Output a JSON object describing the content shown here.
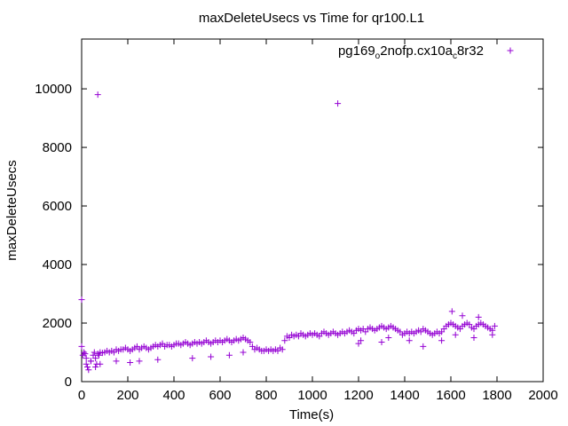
{
  "chart_data": {
    "type": "scatter",
    "title": "maxDeleteUsecs vs Time for qr100.L1",
    "xlabel": "Time(s)",
    "ylabel": "maxDeleteUsecs",
    "xlim": [
      0,
      2000
    ],
    "ylim": [
      0,
      11700
    ],
    "xticks": [
      0,
      200,
      400,
      600,
      800,
      1000,
      1200,
      1400,
      1600,
      1800,
      2000
    ],
    "yticks": [
      0,
      2000,
      4000,
      6000,
      8000,
      10000
    ],
    "grid": false,
    "legend_position": "top-right",
    "marker": "+",
    "series": [
      {
        "name_parts": [
          "pg169",
          "o",
          "2nofp.cx10a",
          "c",
          "8r32"
        ],
        "color": "#9400d3",
        "x": [
          0,
          5,
          10,
          15,
          20,
          25,
          30,
          40,
          50,
          55,
          60,
          65,
          70,
          75,
          80,
          90,
          100,
          110,
          120,
          130,
          140,
          150,
          160,
          170,
          180,
          190,
          200,
          210,
          220,
          230,
          240,
          250,
          260,
          270,
          280,
          290,
          300,
          310,
          320,
          330,
          340,
          350,
          360,
          370,
          380,
          390,
          400,
          410,
          420,
          430,
          440,
          450,
          460,
          470,
          480,
          490,
          500,
          510,
          520,
          530,
          540,
          550,
          560,
          570,
          580,
          590,
          600,
          610,
          620,
          630,
          640,
          650,
          660,
          670,
          680,
          690,
          700,
          710,
          720,
          730,
          740,
          750,
          760,
          770,
          780,
          790,
          800,
          810,
          820,
          830,
          840,
          850,
          860,
          870,
          880,
          890,
          900,
          910,
          920,
          930,
          940,
          950,
          960,
          970,
          980,
          990,
          1000,
          1010,
          1020,
          1030,
          1040,
          1050,
          1060,
          1070,
          1080,
          1090,
          1100,
          1110,
          1120,
          1130,
          1140,
          1150,
          1160,
          1170,
          1180,
          1190,
          1200,
          1210,
          1220,
          1230,
          1240,
          1250,
          1260,
          1270,
          1280,
          1290,
          1300,
          1310,
          1320,
          1330,
          1340,
          1350,
          1360,
          1370,
          1380,
          1390,
          1400,
          1410,
          1420,
          1430,
          1440,
          1450,
          1460,
          1470,
          1480,
          1490,
          1500,
          1510,
          1520,
          1530,
          1540,
          1550,
          1560,
          1570,
          1580,
          1590,
          1600,
          1610,
          1620,
          1630,
          1640,
          1650,
          1660,
          1670,
          1680,
          1690,
          1700,
          1710,
          1720,
          1730,
          1740,
          1750,
          1760,
          1770,
          1780,
          1790,
          70,
          1110,
          0,
          20,
          40,
          60,
          80,
          150,
          210,
          250,
          330,
          480,
          560,
          640,
          700,
          1200,
          1300,
          1480,
          1560,
          1620,
          1700,
          1780,
          1605,
          1650,
          1720,
          1210,
          1330,
          1420
        ],
        "y": [
          1200,
          900,
          1000,
          950,
          800,
          500,
          400,
          700,
          900,
          1000,
          800,
          600,
          950,
          900,
          1000,
          980,
          1000,
          1050,
          1000,
          1050,
          1000,
          1100,
          1050,
          1100,
          1100,
          1150,
          1100,
          1050,
          1100,
          1150,
          1200,
          1100,
          1150,
          1200,
          1150,
          1100,
          1150,
          1200,
          1250,
          1200,
          1250,
          1300,
          1200,
          1250,
          1250,
          1200,
          1250,
          1300,
          1300,
          1250,
          1300,
          1350,
          1300,
          1250,
          1300,
          1350,
          1300,
          1350,
          1300,
          1350,
          1400,
          1350,
          1300,
          1350,
          1400,
          1350,
          1400,
          1350,
          1400,
          1450,
          1400,
          1350,
          1400,
          1450,
          1400,
          1450,
          1500,
          1450,
          1400,
          1350,
          1200,
          1100,
          1150,
          1100,
          1050,
          1050,
          1100,
          1050,
          1100,
          1050,
          1100,
          1050,
          1150,
          1100,
          1400,
          1550,
          1500,
          1600,
          1550,
          1600,
          1550,
          1650,
          1600,
          1550,
          1600,
          1650,
          1600,
          1650,
          1600,
          1550,
          1650,
          1700,
          1650,
          1600,
          1650,
          1700,
          1650,
          1600,
          1650,
          1700,
          1650,
          1700,
          1750,
          1700,
          1650,
          1750,
          1800,
          1750,
          1800,
          1700,
          1800,
          1850,
          1800,
          1750,
          1800,
          1850,
          1900,
          1850,
          1800,
          1850,
          1900,
          1850,
          1800,
          1750,
          1700,
          1600,
          1650,
          1700,
          1650,
          1700,
          1650,
          1700,
          1750,
          1700,
          1800,
          1750,
          1700,
          1650,
          1600,
          1650,
          1700,
          1650,
          1700,
          1800,
          1900,
          1950,
          2000,
          1950,
          1900,
          1850,
          1800,
          1900,
          1950,
          2000,
          1950,
          1850,
          1800,
          1900,
          1950,
          2000,
          1950,
          1900,
          1850,
          1800,
          1750,
          1900,
          9800,
          9500,
          2800,
          600,
          700,
          500,
          600,
          700,
          650,
          700,
          750,
          800,
          850,
          900,
          1000,
          1300,
          1350,
          1200,
          1400,
          1600,
          1500,
          1600,
          2400,
          2250,
          2200,
          1400,
          1500,
          1400
        ]
      }
    ]
  }
}
